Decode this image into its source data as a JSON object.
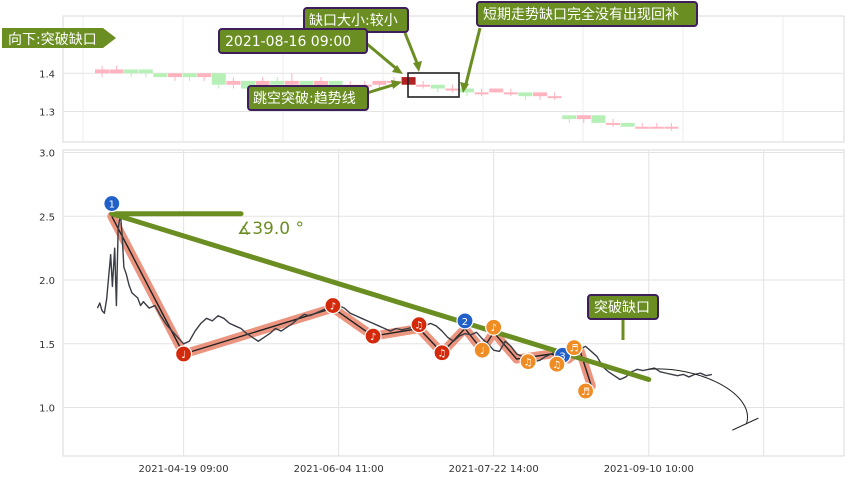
{
  "chart_data": [
    {
      "type": "candlestick",
      "panel": "top",
      "title": "",
      "ylim": [
        1.22,
        1.55
      ],
      "yticks": [
        1.3,
        1.4
      ],
      "ytick_labels": [
        "1.3",
        "1.4"
      ],
      "grid": true,
      "colors": {
        "up": "#ffb3bf",
        "down": "#b7f0b7",
        "gap_candle": "#b22222"
      },
      "candles": [
        {
          "o": 1.4,
          "c": 1.41,
          "h": 1.42,
          "l": 1.39
        },
        {
          "o": 1.4,
          "c": 1.41,
          "h": 1.42,
          "l": 1.4
        },
        {
          "o": 1.41,
          "c": 1.4,
          "h": 1.41,
          "l": 1.39
        },
        {
          "o": 1.41,
          "c": 1.4,
          "h": 1.41,
          "l": 1.39
        },
        {
          "o": 1.4,
          "c": 1.39,
          "h": 1.4,
          "l": 1.39
        },
        {
          "o": 1.39,
          "c": 1.4,
          "h": 1.4,
          "l": 1.38
        },
        {
          "o": 1.4,
          "c": 1.39,
          "h": 1.4,
          "l": 1.38
        },
        {
          "o": 1.39,
          "c": 1.4,
          "h": 1.4,
          "l": 1.38
        },
        {
          "o": 1.4,
          "c": 1.37,
          "h": 1.4,
          "l": 1.36
        },
        {
          "o": 1.37,
          "c": 1.38,
          "h": 1.39,
          "l": 1.36
        },
        {
          "o": 1.38,
          "c": 1.36,
          "h": 1.38,
          "l": 1.35
        },
        {
          "o": 1.36,
          "c": 1.38,
          "h": 1.39,
          "l": 1.36
        },
        {
          "o": 1.38,
          "c": 1.37,
          "h": 1.39,
          "l": 1.36
        },
        {
          "o": 1.37,
          "c": 1.38,
          "h": 1.4,
          "l": 1.36
        },
        {
          "o": 1.38,
          "c": 1.36,
          "h": 1.38,
          "l": 1.35
        },
        {
          "o": 1.36,
          "c": 1.38,
          "h": 1.39,
          "l": 1.35
        },
        {
          "o": 1.38,
          "c": 1.36,
          "h": 1.38,
          "l": 1.35
        },
        {
          "o": 1.36,
          "c": 1.37,
          "h": 1.38,
          "l": 1.36
        },
        {
          "o": 1.37,
          "c": 1.37,
          "h": 1.38,
          "l": 1.36
        },
        {
          "o": 1.37,
          "c": 1.38,
          "h": 1.38,
          "l": 1.36
        },
        {
          "o": 1.38,
          "c": 1.38,
          "h": 1.39,
          "l": 1.37
        },
        {
          "o": 1.37,
          "c": 1.39,
          "h": 1.39,
          "l": 1.37,
          "gap": true
        },
        {
          "o": 1.37,
          "c": 1.37,
          "h": 1.38,
          "l": 1.36
        },
        {
          "o": 1.37,
          "c": 1.36,
          "h": 1.37,
          "l": 1.35
        },
        {
          "o": 1.36,
          "c": 1.36,
          "h": 1.37,
          "l": 1.35
        },
        {
          "o": 1.36,
          "c": 1.35,
          "h": 1.36,
          "l": 1.34
        },
        {
          "o": 1.35,
          "c": 1.35,
          "h": 1.36,
          "l": 1.34
        },
        {
          "o": 1.35,
          "c": 1.36,
          "h": 1.36,
          "l": 1.35
        },
        {
          "o": 1.35,
          "c": 1.35,
          "h": 1.36,
          "l": 1.34
        },
        {
          "o": 1.35,
          "c": 1.34,
          "h": 1.35,
          "l": 1.33
        },
        {
          "o": 1.34,
          "c": 1.35,
          "h": 1.35,
          "l": 1.33
        },
        {
          "o": 1.34,
          "c": 1.34,
          "h": 1.35,
          "l": 1.33
        },
        {
          "o": 1.29,
          "c": 1.28,
          "h": 1.29,
          "l": 1.27
        },
        {
          "o": 1.28,
          "c": 1.29,
          "h": 1.29,
          "l": 1.27
        },
        {
          "o": 1.29,
          "c": 1.27,
          "h": 1.29,
          "l": 1.27
        },
        {
          "o": 1.27,
          "c": 1.27,
          "h": 1.28,
          "l": 1.26
        },
        {
          "o": 1.27,
          "c": 1.26,
          "h": 1.27,
          "l": 1.26
        },
        {
          "o": 1.26,
          "c": 1.26,
          "h": 1.27,
          "l": 1.26
        },
        {
          "o": 1.26,
          "c": 1.26,
          "h": 1.27,
          "l": 1.26
        },
        {
          "o": 1.26,
          "c": 1.26,
          "h": 1.27,
          "l": 1.25
        }
      ],
      "annotations": {
        "corner_label": "向下:突破缺口",
        "gap_size": "缺口大小:较小",
        "gap_fill": "短期走势缺口完全没有出现回补",
        "date": "2021-08-16 09:00",
        "jump_type": "跳空突破:趋势线"
      }
    },
    {
      "type": "line",
      "panel": "bottom",
      "title": "",
      "xlabel": "",
      "ylabel": "",
      "ylim": [
        0.62,
        3.02
      ],
      "yticks": [
        1.0,
        1.5,
        2.0,
        2.5,
        3.0
      ],
      "ytick_labels": [
        "1.0",
        "1.5",
        "2.0",
        "2.5",
        "3.0"
      ],
      "xlim": [
        0,
        136
      ],
      "xticks": [
        21,
        48,
        75,
        102
      ],
      "xtick_labels": [
        "2021-04-19 09:00",
        "2021-06-04 11:00",
        "2021-07-22 14:00",
        "2021-09-10 10:00"
      ],
      "grid": true,
      "colors": {
        "price": "#3a3d45",
        "trend": "#6b8e23",
        "zigzag": "#e8826a",
        "red_marker": "#d42a0c",
        "orange_marker": "#f08c24",
        "blue_marker": "#2060c8"
      },
      "series": [
        {
          "values_x": [
            6,
            6.4,
            6.8,
            7.2,
            7.6,
            8,
            8.3,
            8.6,
            9,
            9.3,
            9.6,
            10,
            10.3,
            10.6,
            11,
            11.5,
            12,
            12.5,
            13,
            13.5,
            14,
            15,
            16,
            17,
            18,
            19,
            20,
            21,
            22,
            23,
            24,
            25,
            26,
            27,
            28,
            29,
            30,
            31,
            32,
            33,
            34,
            35,
            36,
            37,
            38,
            39,
            40,
            41,
            42,
            43,
            44,
            45,
            46,
            47,
            48,
            49,
            50,
            51,
            52,
            53,
            54,
            55,
            56,
            57,
            58,
            59,
            60,
            61,
            62,
            63,
            64,
            65,
            66,
            67,
            68,
            69,
            70,
            71,
            72,
            73,
            74,
            75,
            76,
            77,
            78,
            79,
            80,
            81,
            82,
            83,
            84,
            85,
            86,
            87,
            88,
            89,
            90,
            91,
            92,
            93,
            94,
            95,
            96,
            97,
            98,
            99,
            100,
            101,
            102,
            103,
            104,
            105,
            106,
            107,
            108,
            109,
            110,
            111,
            112,
            113
          ],
          "values": [
            1.78,
            1.82,
            1.76,
            1.74,
            1.85,
            2.05,
            2.2,
            1.95,
            2.25,
            1.8,
            2.4,
            2.52,
            2.35,
            2.1,
            2.05,
            1.96,
            1.9,
            1.88,
            1.86,
            1.8,
            1.83,
            1.78,
            1.8,
            1.72,
            1.65,
            1.6,
            1.55,
            1.5,
            1.52,
            1.6,
            1.66,
            1.7,
            1.68,
            1.72,
            1.7,
            1.66,
            1.64,
            1.62,
            1.58,
            1.55,
            1.52,
            1.55,
            1.58,
            1.62,
            1.6,
            1.63,
            1.66,
            1.7,
            1.73,
            1.72,
            1.74,
            1.76,
            1.78,
            1.77,
            1.8,
            1.78,
            1.74,
            1.72,
            1.7,
            1.68,
            1.66,
            1.64,
            1.62,
            1.6,
            1.62,
            1.61,
            1.62,
            1.63,
            1.62,
            1.64,
            1.66,
            1.64,
            1.6,
            1.55,
            1.52,
            1.56,
            1.58,
            1.57,
            1.59,
            1.54,
            1.5,
            1.45,
            1.44,
            1.52,
            1.48,
            1.42,
            1.4,
            1.38,
            1.36,
            1.37,
            1.4,
            1.42,
            1.44,
            1.46,
            1.45,
            1.44,
            1.46,
            1.48,
            1.44,
            1.4,
            1.32,
            1.28,
            1.25,
            1.22,
            1.24,
            1.28,
            1.3,
            1.29,
            1.3,
            1.31,
            1.28,
            1.27,
            1.26,
            1.25,
            1.26,
            1.24,
            1.26,
            1.27,
            1.25,
            1.26
          ]
        }
      ],
      "zigzag": [
        [
          8.5,
          2.5
        ],
        [
          21,
          1.42
        ],
        [
          47,
          1.78
        ],
        [
          54,
          1.56
        ],
        [
          62,
          1.62
        ],
        [
          66,
          1.43
        ],
        [
          70,
          1.62
        ],
        [
          73,
          1.45
        ],
        [
          75,
          1.59
        ],
        [
          79,
          1.38
        ],
        [
          85,
          1.42
        ],
        [
          88,
          1.38
        ],
        [
          90,
          1.45
        ],
        [
          92,
          1.17
        ]
      ],
      "trendline": [
        [
          8.5,
          2.52
        ],
        [
          102,
          1.22
        ]
      ],
      "angle_ray": [
        [
          8.5,
          2.52
        ],
        [
          31,
          2.52
        ]
      ],
      "angle_label": "∡39.0 °",
      "forecast_arc": {
        "start": [
          102,
          1.3
        ],
        "end": [
          119,
          0.87
        ]
      },
      "markers": [
        {
          "x": 8.5,
          "y": 2.6,
          "label": "1",
          "color": "blue"
        },
        {
          "x": 70,
          "y": 1.68,
          "label": "2",
          "color": "blue"
        },
        {
          "x": 87,
          "y": 1.41,
          "label": "3",
          "color": "blue"
        },
        {
          "x": 21,
          "y": 1.42,
          "label": "♩",
          "color": "red"
        },
        {
          "x": 47,
          "y": 1.8,
          "label": "♪",
          "color": "red"
        },
        {
          "x": 54,
          "y": 1.56,
          "label": "♪",
          "color": "red"
        },
        {
          "x": 62,
          "y": 1.65,
          "label": "♫",
          "color": "red"
        },
        {
          "x": 66,
          "y": 1.43,
          "label": "♫",
          "color": "red"
        },
        {
          "x": 73,
          "y": 1.45,
          "label": "♩",
          "color": "orange"
        },
        {
          "x": 75,
          "y": 1.63,
          "label": "♪",
          "color": "orange"
        },
        {
          "x": 81,
          "y": 1.36,
          "label": "♫",
          "color": "orange"
        },
        {
          "x": 86,
          "y": 1.34,
          "label": "♫",
          "color": "orange"
        },
        {
          "x": 89,
          "y": 1.47,
          "label": "♬",
          "color": "orange"
        },
        {
          "x": 91,
          "y": 1.13,
          "label": "♬",
          "color": "orange"
        }
      ],
      "callout": "突破缺口"
    }
  ]
}
